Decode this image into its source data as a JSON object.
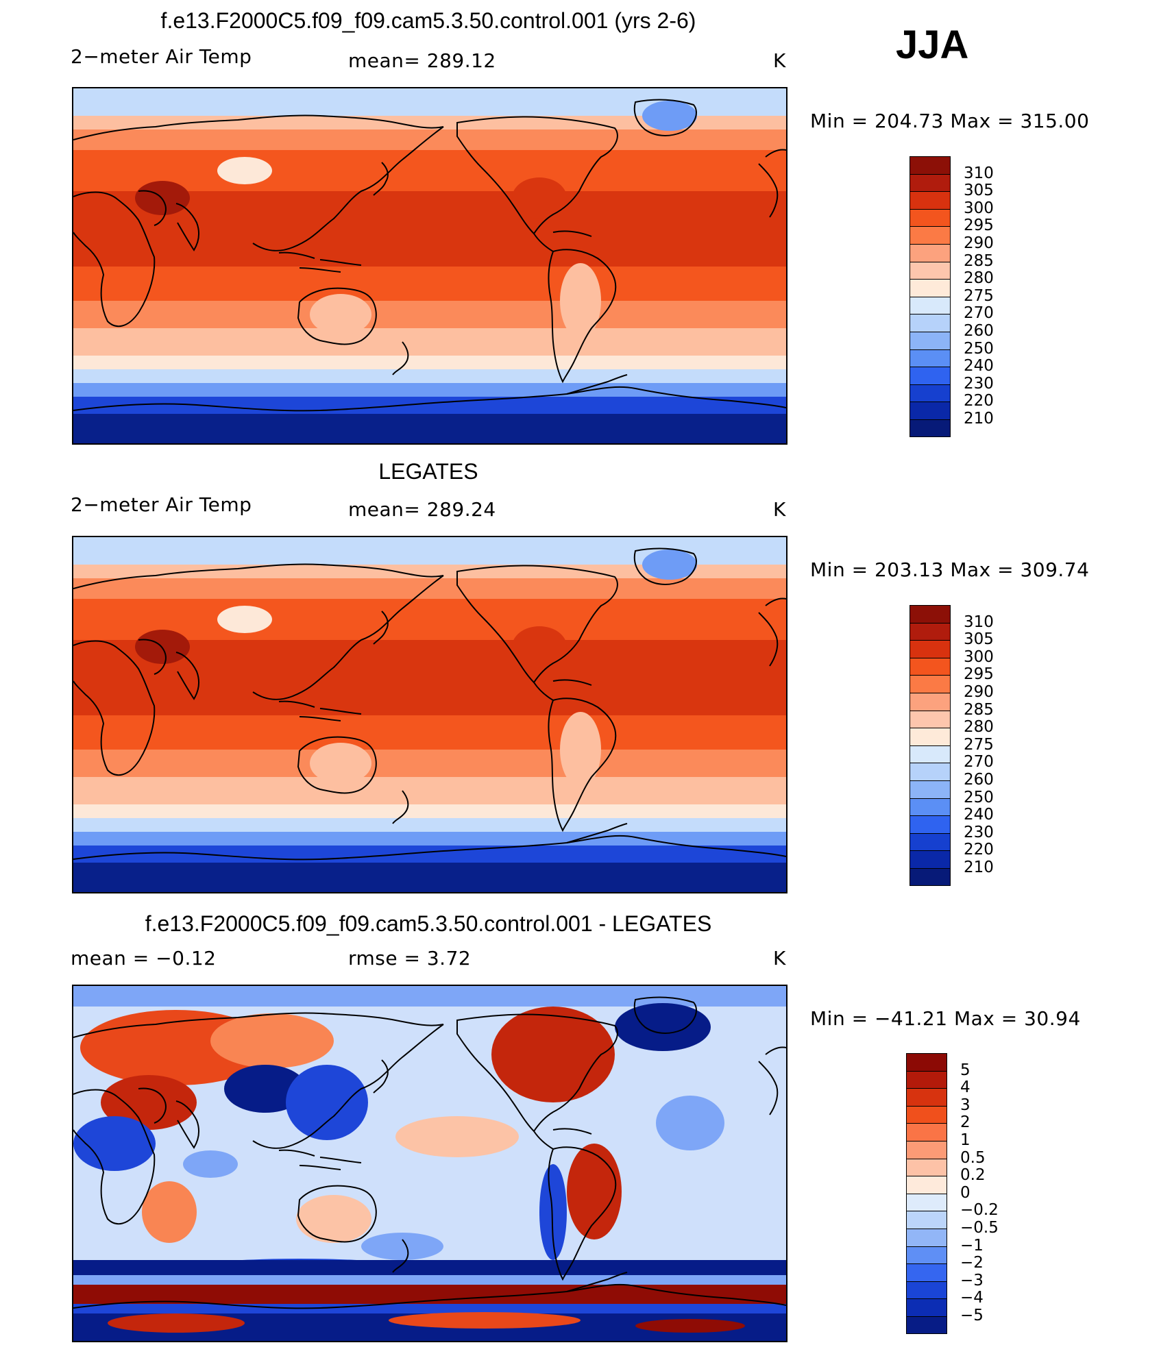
{
  "season": "JJA",
  "panels": [
    {
      "title": "f.e13.F2000C5.f09_f09.cam5.3.50.control.001 (yrs 2-6)",
      "left_label": "2−meter Air Temp",
      "center_label": "mean=  289.12",
      "units": "K",
      "minmax": "Min  =  204.73  Max  =  315.00",
      "colorbar": {
        "labels": [
          "310",
          "305",
          "300",
          "295",
          "290",
          "285",
          "280",
          "275",
          "270",
          "260",
          "250",
          "240",
          "230",
          "220",
          "210"
        ],
        "colors": [
          "#8c1007",
          "#b01c0d",
          "#d8320f",
          "#f3551e",
          "#fb7a45",
          "#fca27e",
          "#fdc6ad",
          "#feead9",
          "#d8e9fb",
          "#b6d2fa",
          "#8cb4f7",
          "#5b8ff5",
          "#2f63f0",
          "#1640cf",
          "#0a28a8",
          "#071a78"
        ]
      },
      "map_palette": {
        "cold_deep": "#08208a",
        "cold": "#1d46d8",
        "cool": "#6e9cf6",
        "cool_light": "#c4dcfb",
        "neutral": "#fde8d8",
        "warm_light": "#fdbfa0",
        "warm": "#fb8a5a",
        "hot": "#f4561e",
        "very_hot": "#d9360f",
        "extreme": "#a31a0a"
      }
    },
    {
      "title": "LEGATES",
      "left_label": "2−meter Air Temp",
      "center_label": "mean=  289.24",
      "units": "K",
      "minmax": "Min  =  203.13  Max  =  309.74",
      "colorbar": {
        "labels": [
          "310",
          "305",
          "300",
          "295",
          "290",
          "285",
          "280",
          "275",
          "270",
          "260",
          "250",
          "240",
          "230",
          "220",
          "210"
        ],
        "colors": [
          "#8c1007",
          "#b01c0d",
          "#d8320f",
          "#f3551e",
          "#fb7a45",
          "#fca27e",
          "#fdc6ad",
          "#feead9",
          "#d8e9fb",
          "#b6d2fa",
          "#8cb4f7",
          "#5b8ff5",
          "#2f63f0",
          "#1640cf",
          "#0a28a8",
          "#071a78"
        ]
      },
      "map_palette": {
        "cold_deep": "#08208a",
        "cold": "#1d46d8",
        "cool": "#6e9cf6",
        "cool_light": "#c4dcfb",
        "neutral": "#fde8d8",
        "warm_light": "#fdbfa0",
        "warm": "#fb8a5a",
        "hot": "#f4561e",
        "very_hot": "#d9360f",
        "extreme": "#a31a0a"
      }
    },
    {
      "title": "f.e13.F2000C5.f09_f09.cam5.3.50.control.001 - LEGATES",
      "left_label": "mean  =    −0.12",
      "center_label": "rmse  =     3.72",
      "units": "K",
      "minmax": "Min  =  −41.21  Max  =    30.94",
      "colorbar": {
        "labels": [
          "5",
          "4",
          "3",
          "2",
          "1",
          "0.5",
          "0.2",
          "0",
          "−0.2",
          "−0.5",
          "−1",
          "−2",
          "−3",
          "−4",
          "−5"
        ],
        "colors": [
          "#8c0a05",
          "#b31a0a",
          "#d7330f",
          "#f0501c",
          "#fa7446",
          "#fc9b76",
          "#fdc2a7",
          "#feeadb",
          "#deebfb",
          "#bcd5fa",
          "#92b6f7",
          "#5f8ff5",
          "#3566f0",
          "#1a45d6",
          "#0c2db4",
          "#071c86"
        ]
      },
      "map_palette": {
        "cold_deep": "#061c88",
        "cold": "#1e46d8",
        "cool": "#7ea6f7",
        "cool_light": "#cfe0fb",
        "neutral": "#fbeee4",
        "warm_light": "#fcc3a6",
        "warm": "#f98553",
        "hot": "#e9481a",
        "very_hot": "#c4260c",
        "extreme": "#8f0c05"
      }
    }
  ]
}
